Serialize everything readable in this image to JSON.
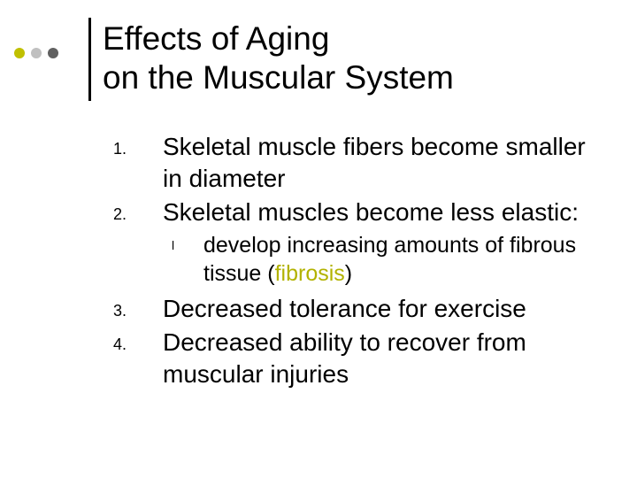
{
  "dots": {
    "colors": [
      "#c0c000",
      "#c0c0c0",
      "#606060"
    ]
  },
  "title": {
    "line1": "Effects of Aging",
    "line2": "on the Muscular System"
  },
  "list": {
    "n1": "1.",
    "t1": "Skeletal muscle fibers become smaller in diameter",
    "n2": "2.",
    "t2": "Skeletal muscles become less elastic:",
    "bullet": "l",
    "sub_pre": "develop increasing amounts of fibrous tissue (",
    "sub_hl": "fibrosis",
    "sub_post": ")",
    "n3": "3.",
    "t3": "Decreased tolerance for exercise",
    "n4": "4.",
    "t4": "Decreased ability to recover from muscular injuries"
  },
  "highlight_color": "#b2b200"
}
